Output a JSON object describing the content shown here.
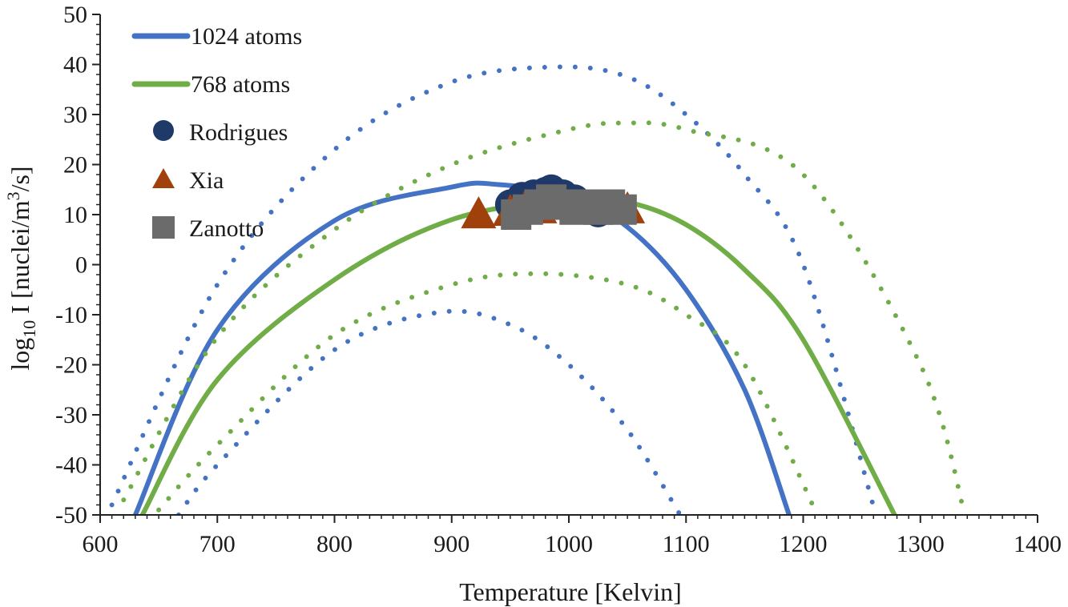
{
  "chart_data": {
    "type": "line",
    "xlabel": "Temperature [Kelvin]",
    "ylabel": {
      "prefix": "log",
      "sub": "10",
      "middle": " I [nuclei/m",
      "sup": "3",
      "suffix": "/s]"
    },
    "xlim": [
      600,
      1400
    ],
    "ylim": [
      -50,
      50
    ],
    "x_ticks": [
      "600",
      "700",
      "800",
      "900",
      "1000",
      "1100",
      "1200",
      "1300",
      "1400"
    ],
    "y_ticks": [
      "50",
      "40",
      "30",
      "20",
      "10",
      "0",
      "-10",
      "-20",
      "-30",
      "-40",
      "-50"
    ],
    "grid": false,
    "legend_position": "top-left",
    "legend": [
      {
        "label": "1024 atoms",
        "marker": "line",
        "color": "#4472C4"
      },
      {
        "label": "768 atoms",
        "marker": "line",
        "color": "#70AD47"
      },
      {
        "label": "Rodrigues",
        "marker": "circle",
        "color": "#1F3A68"
      },
      {
        "label": "Xia",
        "marker": "triangle",
        "color": "#A0410C"
      },
      {
        "label": "Zanotto",
        "marker": "square",
        "color": "#6B6B6B"
      }
    ],
    "series": [
      {
        "name": "1024 atoms",
        "style": "solid",
        "color": "#4472C4",
        "x": [
          630,
          700,
          800,
          900,
          940,
          1000,
          1050,
          1100,
          1150,
          1188
        ],
        "y": [
          -50,
          -13,
          8.8,
          15.5,
          16,
          13.8,
          7.5,
          -5,
          -25,
          -50
        ]
      },
      {
        "name": "1024 atoms upper",
        "style": "dotted",
        "color": "#4472C4",
        "x": [
          610,
          700,
          800,
          900,
          990,
          1050,
          1100,
          1150,
          1200,
          1262
        ],
        "y": [
          -48,
          -4,
          23,
          36.5,
          39.5,
          37.5,
          30,
          18,
          0,
          -50
        ]
      },
      {
        "name": "1024 atoms lower",
        "style": "dotted",
        "color": "#4472C4",
        "x": [
          667,
          700,
          800,
          890,
          950,
          1000,
          1050,
          1095
        ],
        "y": [
          -50,
          -40,
          -17,
          -9.5,
          -12,
          -20,
          -33,
          -50
        ]
      },
      {
        "name": "768 atoms",
        "style": "solid",
        "color": "#70AD47",
        "x": [
          636,
          700,
          800,
          900,
          1000,
          1050,
          1100,
          1150,
          1200,
          1278
        ],
        "y": [
          -50,
          -23,
          -3,
          9,
          13,
          12.5,
          8,
          -1,
          -15,
          -50
        ]
      },
      {
        "name": "768 atoms upper",
        "style": "dotted",
        "color": "#70AD47",
        "x": [
          620,
          700,
          800,
          900,
          1000,
          1050,
          1100,
          1200,
          1300,
          1338
        ],
        "y": [
          -47,
          -14.5,
          7,
          20,
          27,
          28.3,
          27,
          18,
          -20,
          -50
        ]
      },
      {
        "name": "768 atoms lower",
        "style": "dotted",
        "color": "#70AD47",
        "x": [
          650,
          700,
          800,
          900,
          975,
          1050,
          1100,
          1150,
          1212
        ],
        "y": [
          -49,
          -36,
          -14,
          -4,
          -1.8,
          -4,
          -10,
          -20,
          -50
        ]
      }
    ],
    "points": {
      "Rodrigues": {
        "color": "#1F3A68",
        "x": [
          950,
          960,
          970,
          980,
          985,
          995,
          1005,
          1015,
          1025
        ],
        "y": [
          12,
          13.5,
          14,
          14.5,
          15,
          14,
          13,
          12,
          10.5
        ]
      },
      "Xia": {
        "color": "#A0410C",
        "x": [
          923,
          950,
          963,
          975,
          1050
        ],
        "y": [
          9.5,
          10,
          11,
          10.5,
          10.5
        ]
      },
      "Zanotto": {
        "color": "#6B6B6B",
        "x": [
          955,
          965,
          975,
          985,
          995,
          1005,
          1015,
          1025,
          1035,
          1045
        ],
        "y": [
          10,
          11,
          12,
          13,
          12,
          11,
          12,
          11,
          12,
          11
        ]
      }
    }
  }
}
